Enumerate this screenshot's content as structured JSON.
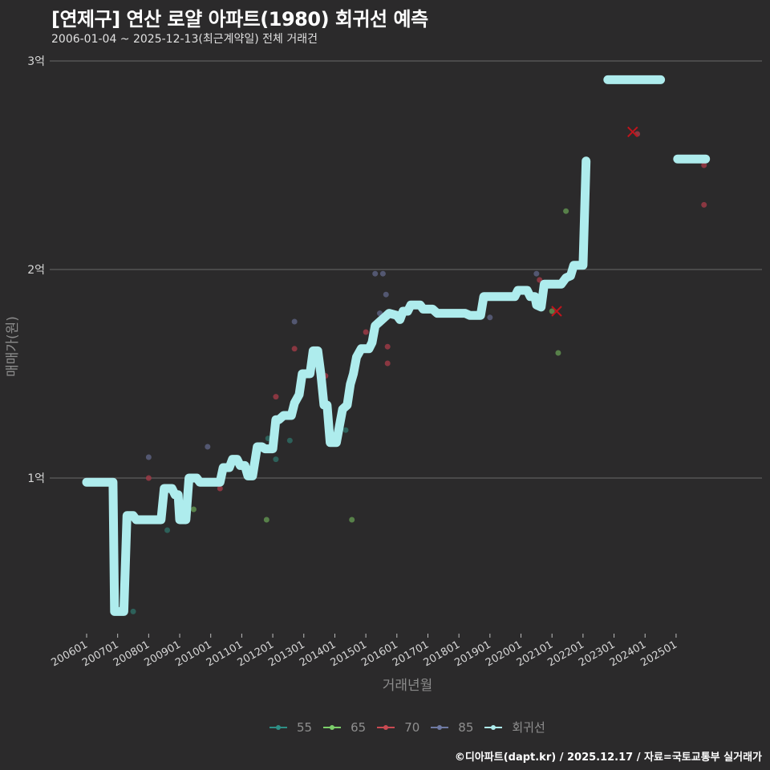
{
  "header": {
    "title": "[연제구] 연산 로얄 아파트(1980) 회귀선 예측",
    "subtitle": "2006-01-04 ~ 2025-12-13(최근계약일) 전체 거래건"
  },
  "footer": {
    "credit": "©디아파트(dapt.kr) / 2025.12.17 / 자료=국토교통부 실거래가"
  },
  "colors": {
    "background": "#2b2a2b",
    "gridline": "#6a6a6a",
    "regression": "#aeeced",
    "s55": "#2e6b63",
    "s65": "#5f8f4f",
    "s70": "#9b3a45",
    "s85": "#5a5f7e",
    "cancel_mark": "#c0141c"
  },
  "legend": {
    "items": [
      {
        "label": "55",
        "color": "#2e8f86"
      },
      {
        "label": "65",
        "color": "#7ccf6a"
      },
      {
        "label": "70",
        "color": "#c94a52"
      },
      {
        "label": "85",
        "color": "#6f7aa3"
      },
      {
        "label": "회귀선",
        "color": "#aeeced"
      }
    ]
  },
  "chart_data": {
    "type": "line",
    "title": "[연제구] 연산 로얄 아파트(1980) 회귀선 예측",
    "subtitle": "2006-01-04 ~ 2025-12-13(최근계약일) 전체 거래건",
    "xlabel": "거래년월",
    "ylabel": "매매가(원)",
    "ylim": [
      0.2,
      3.05
    ],
    "y_unit": "억",
    "yticks": [
      {
        "value": 1,
        "label": "1억"
      },
      {
        "value": 2,
        "label": "2억"
      },
      {
        "value": 3,
        "label": "3억"
      }
    ],
    "xticks": [
      "200601",
      "200701",
      "200801",
      "200901",
      "201001",
      "201101",
      "201201",
      "201301",
      "201401",
      "201501",
      "201601",
      "201701",
      "201801",
      "201901",
      "202001",
      "202101",
      "202201",
      "202301",
      "202401",
      "202501"
    ],
    "grid": true,
    "legend_position": "bottom",
    "regression_line": [
      [
        2006.0,
        0.98
      ],
      [
        2006.85,
        0.98
      ],
      [
        2006.9,
        0.36
      ],
      [
        2007.2,
        0.36
      ],
      [
        2007.3,
        0.82
      ],
      [
        2007.5,
        0.82
      ],
      [
        2007.6,
        0.8
      ],
      [
        2008.4,
        0.8
      ],
      [
        2008.5,
        0.95
      ],
      [
        2008.75,
        0.95
      ],
      [
        2008.85,
        0.92
      ],
      [
        2008.95,
        0.92
      ],
      [
        2009.0,
        0.8
      ],
      [
        2009.2,
        0.8
      ],
      [
        2009.3,
        1.0
      ],
      [
        2009.55,
        1.0
      ],
      [
        2009.65,
        0.98
      ],
      [
        2010.3,
        0.98
      ],
      [
        2010.4,
        1.05
      ],
      [
        2010.6,
        1.05
      ],
      [
        2010.7,
        1.09
      ],
      [
        2010.85,
        1.09
      ],
      [
        2010.95,
        1.06
      ],
      [
        2011.1,
        1.06
      ],
      [
        2011.2,
        1.01
      ],
      [
        2011.35,
        1.01
      ],
      [
        2011.5,
        1.15
      ],
      [
        2011.65,
        1.15
      ],
      [
        2011.75,
        1.14
      ],
      [
        2012.0,
        1.14
      ],
      [
        2012.1,
        1.28
      ],
      [
        2012.2,
        1.28
      ],
      [
        2012.35,
        1.3
      ],
      [
        2012.6,
        1.3
      ],
      [
        2012.7,
        1.36
      ],
      [
        2012.85,
        1.4
      ],
      [
        2012.95,
        1.5
      ],
      [
        2013.2,
        1.5
      ],
      [
        2013.3,
        1.61
      ],
      [
        2013.45,
        1.61
      ],
      [
        2013.55,
        1.5
      ],
      [
        2013.65,
        1.35
      ],
      [
        2013.75,
        1.35
      ],
      [
        2013.85,
        1.17
      ],
      [
        2014.05,
        1.17
      ],
      [
        2014.15,
        1.25
      ],
      [
        2014.25,
        1.33
      ],
      [
        2014.4,
        1.35
      ],
      [
        2014.5,
        1.45
      ],
      [
        2014.6,
        1.5
      ],
      [
        2014.7,
        1.58
      ],
      [
        2014.85,
        1.62
      ],
      [
        2015.1,
        1.62
      ],
      [
        2015.2,
        1.65
      ],
      [
        2015.3,
        1.73
      ],
      [
        2015.45,
        1.75
      ],
      [
        2015.6,
        1.77
      ],
      [
        2015.75,
        1.79
      ],
      [
        2016.0,
        1.78
      ],
      [
        2016.1,
        1.76
      ],
      [
        2016.2,
        1.8
      ],
      [
        2016.35,
        1.8
      ],
      [
        2016.45,
        1.83
      ],
      [
        2016.75,
        1.83
      ],
      [
        2016.85,
        1.81
      ],
      [
        2017.15,
        1.81
      ],
      [
        2017.3,
        1.79
      ],
      [
        2018.2,
        1.79
      ],
      [
        2018.35,
        1.78
      ],
      [
        2018.7,
        1.78
      ],
      [
        2018.8,
        1.87
      ],
      [
        2019.8,
        1.87
      ],
      [
        2019.9,
        1.9
      ],
      [
        2020.2,
        1.9
      ],
      [
        2020.3,
        1.87
      ],
      [
        2020.45,
        1.87
      ],
      [
        2020.5,
        1.83
      ],
      [
        2020.65,
        1.82
      ],
      [
        2020.75,
        1.93
      ],
      [
        2021.3,
        1.93
      ],
      [
        2021.45,
        1.96
      ],
      [
        2021.6,
        1.97
      ],
      [
        2021.7,
        2.02
      ],
      [
        2022.0,
        2.02
      ],
      [
        2022.1,
        2.52
      ]
    ],
    "regression_segments_future": [
      {
        "x_start": 2022.8,
        "x_end": 2024.5,
        "y": 2.91
      },
      {
        "x_start": 2025.05,
        "x_end": 2025.95,
        "y": 2.53
      }
    ],
    "series": [
      {
        "name": "55",
        "points": [
          [
            2007.5,
            0.36
          ],
          [
            2008.6,
            0.75
          ],
          [
            2011.85,
            1.19
          ],
          [
            2012.55,
            1.18
          ],
          [
            2012.1,
            1.09
          ],
          [
            2014.35,
            1.23
          ]
        ]
      },
      {
        "name": "65",
        "points": [
          [
            2009.45,
            0.85
          ],
          [
            2011.8,
            0.8
          ],
          [
            2014.55,
            0.8
          ],
          [
            2021.2,
            1.6
          ],
          [
            2021.45,
            2.28
          ],
          [
            2021.0,
            1.8
          ]
        ]
      },
      {
        "name": "70",
        "points": [
          [
            2008.0,
            1.0
          ],
          [
            2010.3,
            0.95
          ],
          [
            2012.1,
            1.39
          ],
          [
            2012.7,
            1.62
          ],
          [
            2013.7,
            1.49
          ],
          [
            2015.0,
            1.7
          ],
          [
            2015.7,
            1.63
          ],
          [
            2015.7,
            1.55
          ],
          [
            2020.6,
            1.95
          ],
          [
            2021.55,
            1.96
          ],
          [
            2023.75,
            2.65
          ],
          [
            2025.9,
            2.5
          ],
          [
            2025.9,
            2.31
          ]
        ]
      },
      {
        "name": "85",
        "points": [
          [
            2008.0,
            1.1
          ],
          [
            2009.9,
            1.15
          ],
          [
            2012.7,
            1.75
          ],
          [
            2015.3,
            1.98
          ],
          [
            2015.55,
            1.98
          ],
          [
            2015.65,
            1.88
          ],
          [
            2015.45,
            1.79
          ],
          [
            2019.0,
            1.77
          ],
          [
            2020.5,
            1.98
          ]
        ]
      }
    ],
    "cancelled_marks": [
      [
        2021.15,
        1.8
      ],
      [
        2023.6,
        2.66
      ]
    ]
  },
  "axes": {
    "y_labels": [
      "3억",
      "2억",
      "1억"
    ],
    "y_title": "매매가(원)",
    "x_title": "거래년월",
    "x_labels": [
      "200601",
      "200701",
      "200801",
      "200901",
      "201001",
      "201101",
      "201201",
      "201301",
      "201401",
      "201501",
      "201601",
      "201701",
      "201801",
      "201901",
      "202001",
      "202101",
      "202201",
      "202301",
      "202401",
      "202501"
    ]
  }
}
